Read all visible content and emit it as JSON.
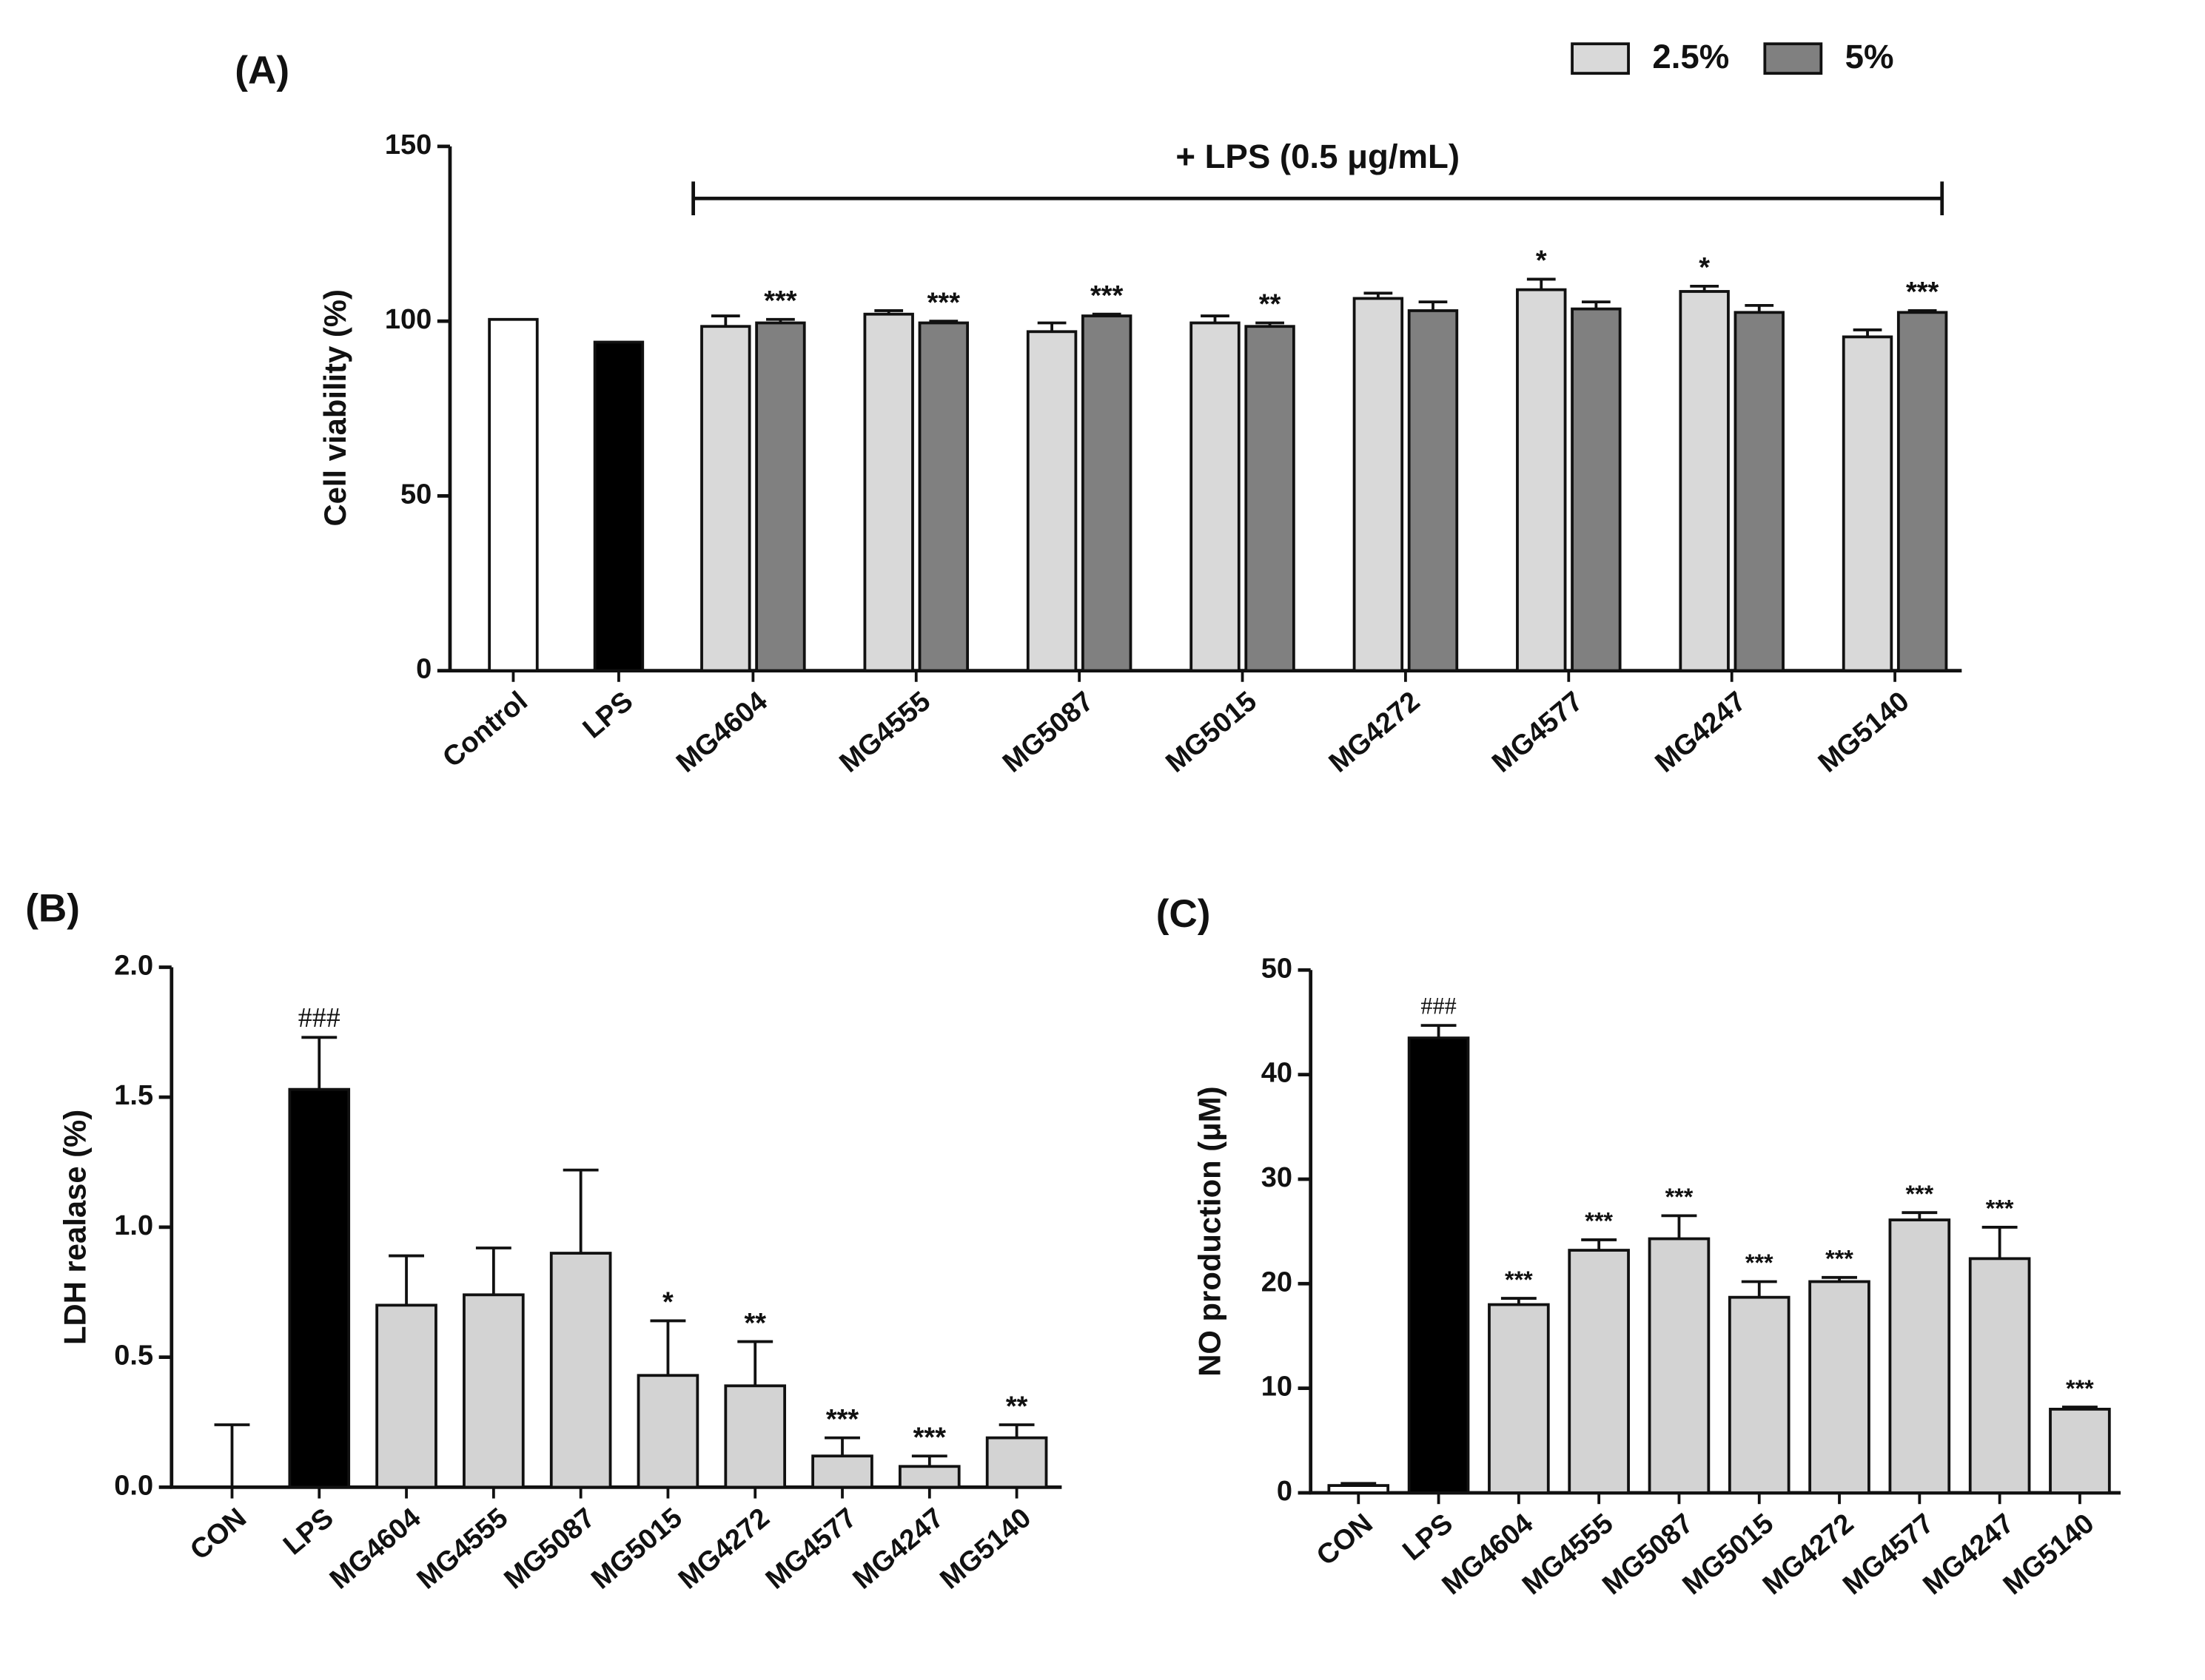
{
  "chart_data": [
    {
      "type": "bar",
      "panel": "(A)",
      "y_label": "Cell viability (%)",
      "categories": [
        "Control",
        "LPS",
        "MG4604",
        "MG4555",
        "MG5087",
        "MG5015",
        "MG4272",
        "MG4577",
        "MG4247",
        "MG5140"
      ],
      "values": [
        100.5,
        94,
        null,
        null,
        null,
        null,
        null,
        null,
        null,
        null
      ],
      "colors": [
        "#ffffff",
        "#000000",
        null,
        null,
        null,
        null,
        null,
        null,
        null,
        null
      ],
      "series": [
        {
          "name": "2.5%",
          "color": "#d9d9d9",
          "values": [
            null,
            null,
            98.5,
            102,
            97,
            99.5,
            106.5,
            109,
            108.5,
            95.5
          ],
          "errors": [
            null,
            null,
            3,
            1,
            2.5,
            2,
            1.5,
            3,
            1.5,
            2
          ],
          "labels": [
            null,
            null,
            null,
            null,
            null,
            null,
            null,
            "*",
            "*",
            null
          ]
        },
        {
          "name": "5%",
          "color": "#808080",
          "values": [
            null,
            null,
            99.5,
            99.5,
            101.5,
            98.5,
            103,
            103.5,
            102.5,
            102.5
          ],
          "errors": [
            null,
            null,
            1,
            0.5,
            0.5,
            1,
            2.5,
            2,
            2,
            0.5
          ],
          "labels": [
            null,
            null,
            "***",
            "***",
            "***",
            "**",
            null,
            null,
            null,
            "***"
          ]
        }
      ],
      "annotation": {
        "text": "+ LPS (0.5 μg/mL)",
        "span": [
          "MG4604",
          "MG5140"
        ]
      },
      "ylim": [
        0,
        150
      ],
      "yticks": [
        0,
        50,
        100,
        150
      ]
    },
    {
      "type": "bar",
      "panel": "(B)",
      "y_label": "LDH realase (%)",
      "categories": [
        "CON",
        "LPS",
        "MG4604",
        "MG4555",
        "MG5087",
        "MG5015",
        "MG4272",
        "MG4577",
        "MG4247",
        "MG5140"
      ],
      "values": [
        0,
        1.53,
        0.7,
        0.74,
        0.9,
        0.43,
        0.39,
        0.12,
        0.08,
        0.19
      ],
      "errors": [
        0.24,
        0.2,
        0.19,
        0.18,
        0.32,
        0.21,
        0.17,
        0.07,
        0.04,
        0.05
      ],
      "labels": [
        null,
        "###",
        null,
        null,
        null,
        "*",
        "**",
        "***",
        "***",
        "**"
      ],
      "colors": [
        "#ffffff",
        "#000000",
        "#d3d3d3",
        "#d3d3d3",
        "#d3d3d3",
        "#d3d3d3",
        "#d3d3d3",
        "#d3d3d3",
        "#d3d3d3",
        "#d3d3d3"
      ],
      "ylim": [
        0,
        2
      ],
      "yticks": [
        {
          "value": 0,
          "label": "0.0"
        },
        {
          "value": 0.5,
          "label": "0.5"
        },
        {
          "value": 1,
          "label": "1.0"
        },
        {
          "value": 1.5,
          "label": "1.5"
        },
        {
          "value": 2,
          "label": "2.0"
        }
      ]
    },
    {
      "type": "bar",
      "panel": "(C)",
      "y_label": "NO production (μM)",
      "categories": [
        "CON",
        "LPS",
        "MG4604",
        "MG4555",
        "MG5087",
        "MG5015",
        "MG4272",
        "MG4577",
        "MG4247",
        "MG5140"
      ],
      "values": [
        0.7,
        43.5,
        18,
        23.2,
        24.3,
        18.7,
        20.2,
        26.1,
        22.4,
        8
      ],
      "errors": [
        0.2,
        1.2,
        0.6,
        1,
        2.2,
        1.5,
        0.4,
        0.7,
        3,
        0.2
      ],
      "labels": [
        null,
        "###",
        "***",
        "***",
        "***",
        "***",
        "***",
        "***",
        "***",
        "***"
      ],
      "colors": [
        "#ffffff",
        "#000000",
        "#d3d3d3",
        "#d3d3d3",
        "#d3d3d3",
        "#d3d3d3",
        "#d3d3d3",
        "#d3d3d3",
        "#d3d3d3",
        "#d3d3d3"
      ],
      "ylim": [
        0,
        50
      ],
      "yticks": [
        0,
        10,
        20,
        30,
        40,
        50
      ]
    }
  ]
}
